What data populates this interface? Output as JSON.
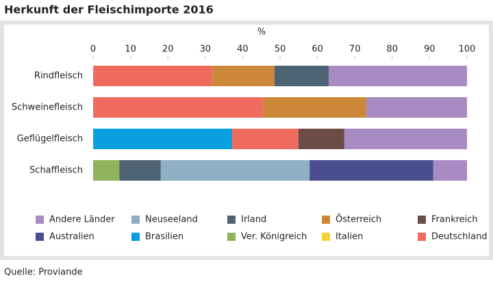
{
  "chart_data": {
    "type": "stacked-bar-horizontal",
    "title": "Herkunft der Fleischimporte 2016",
    "x_label": "%",
    "source": "Quelle: Proviande",
    "categories": [
      "Rindfleisch",
      "Schweinefleisch",
      "Geflügelfleisch",
      "Schaffleisch"
    ],
    "xlim": [
      0,
      100
    ],
    "xticks": [
      0,
      10,
      20,
      30,
      40,
      50,
      60,
      70,
      80,
      90,
      100
    ],
    "series": [
      {
        "name": "Brasilien",
        "color": "#0aa0e0",
        "values": [
          null,
          null,
          37.2,
          null
        ]
      },
      {
        "name": "Ver. Königreich",
        "color": "#8fb35a",
        "values": [
          null,
          null,
          null,
          7.0
        ]
      },
      {
        "name": "Deutschland",
        "color": "#ee6b5d",
        "values": [
          31.9,
          45.4,
          17.7,
          null
        ]
      },
      {
        "name": "Österreich",
        "color": "#cc8838",
        "values": [
          16.6,
          27.7,
          null,
          null
        ]
      },
      {
        "name": "Irland",
        "color": "#4e6475",
        "values": [
          14.5,
          null,
          null,
          11.1
        ]
      },
      {
        "name": "Neuseeland",
        "color": "#8fb0c4",
        "values": [
          null,
          null,
          null,
          39.8
        ]
      },
      {
        "name": "Australien",
        "color": "#4a4e8f",
        "values": [
          null,
          null,
          null,
          33.1
        ]
      },
      {
        "name": "Frankreich",
        "color": "#6d4c47",
        "values": [
          null,
          null,
          12.3,
          null
        ]
      },
      {
        "name": "Italien",
        "color": "#f5d23c",
        "values": [
          null,
          null,
          null,
          null
        ]
      },
      {
        "name": "Andere Länder",
        "color": "#a98bc4",
        "values": [
          37.0,
          26.9,
          32.8,
          9.0
        ]
      }
    ]
  }
}
